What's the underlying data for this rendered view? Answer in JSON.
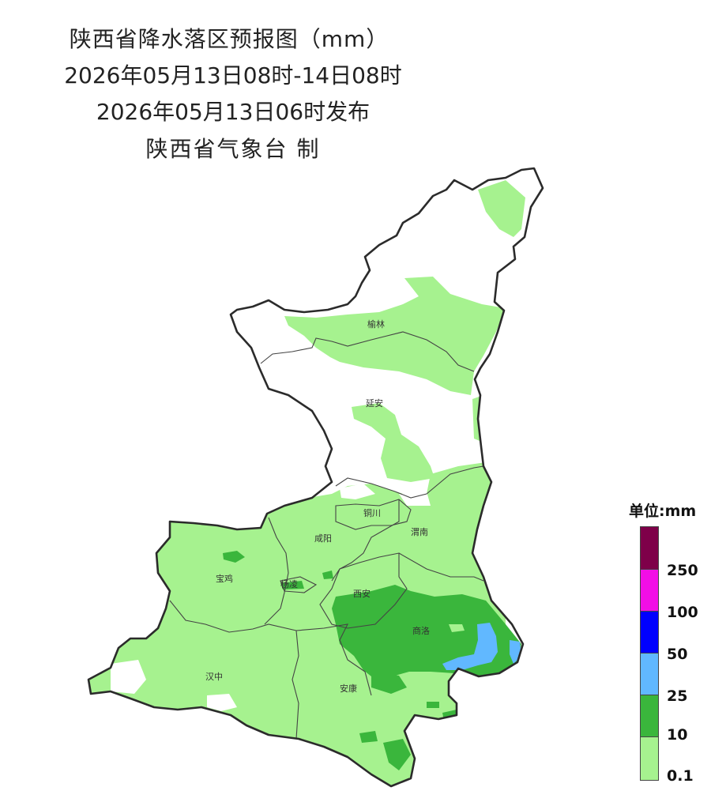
{
  "header": {
    "title": "陕西省降水落区预报图（mm）",
    "period": "2026年05月13日08时-14日08时",
    "issued": "2026年05月13日06时发布",
    "producer": "陕西省气象台 制"
  },
  "map": {
    "cities": [
      {
        "id": "yulin",
        "name": "榆林"
      },
      {
        "id": "yanan",
        "name": "延安"
      },
      {
        "id": "tongchuan",
        "name": "铜川"
      },
      {
        "id": "xianyang",
        "name": "咸阳"
      },
      {
        "id": "weinan",
        "name": "渭南"
      },
      {
        "id": "baoji",
        "name": "宝鸡"
      },
      {
        "id": "yangling",
        "name": "杨凌"
      },
      {
        "id": "xian",
        "name": "西安"
      },
      {
        "id": "shangluo",
        "name": "商洛"
      },
      {
        "id": "hanzhong",
        "name": "汉中"
      },
      {
        "id": "ankang",
        "name": "安康"
      }
    ]
  },
  "legend": {
    "title": "单位:mm",
    "classes": [
      {
        "label": "",
        "color": "#7e0049"
      },
      {
        "label": "250",
        "color": "#f20ee6"
      },
      {
        "label": "100",
        "color": "#0000fe"
      },
      {
        "label": "50",
        "color": "#61b8ff"
      },
      {
        "label": "25",
        "color": "#3ab63c"
      },
      {
        "label": "10",
        "color": "#a6f28f"
      }
    ],
    "ticks": [
      "250",
      "100",
      "50",
      "25",
      "10",
      "0.1"
    ]
  }
}
